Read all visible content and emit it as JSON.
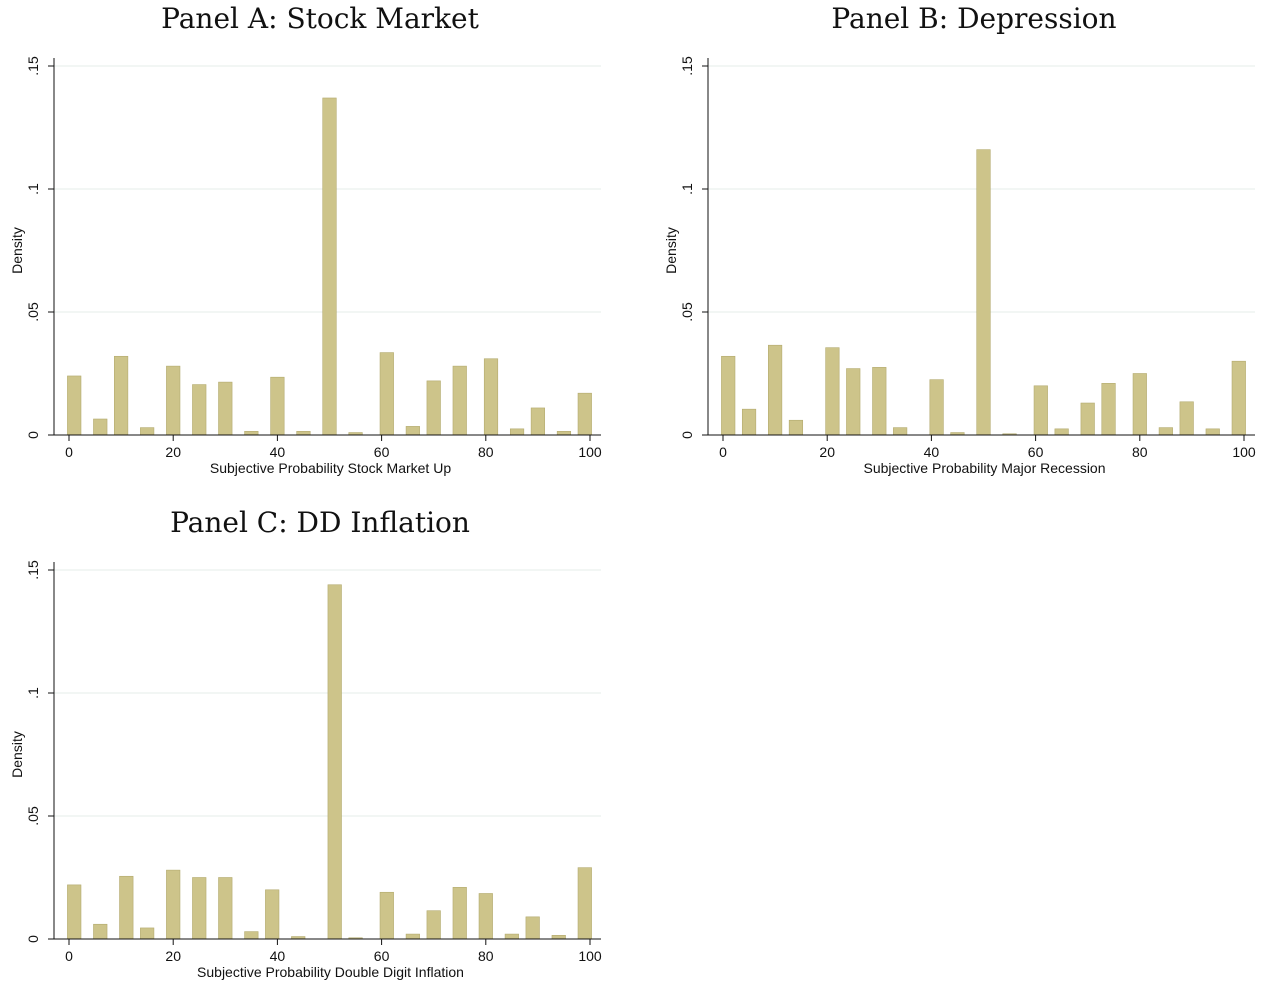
{
  "figure": {
    "bar_fill": "#cdc48a",
    "bar_stroke": "#b3aa6e",
    "grid_color": "#e6ece8"
  },
  "chart_data": [
    {
      "type": "bar",
      "title": "Panel A: Stock Market",
      "xlabel": "Subjective Probability Stock Market Up",
      "ylabel": "Density",
      "xlim": [
        0,
        100
      ],
      "ylim": [
        0,
        0.15
      ],
      "xticks": [
        0,
        20,
        40,
        60,
        80,
        100
      ],
      "yticks": [
        0,
        0.05,
        0.1,
        0.15
      ],
      "ytick_labels": [
        "0",
        ".05",
        ".1",
        ".15"
      ],
      "grid": true,
      "bin_width": 5,
      "bar_width": 2.6,
      "x": [
        1,
        6,
        10,
        15,
        20,
        25,
        30,
        35,
        40,
        45,
        50,
        55,
        61,
        66,
        70,
        75,
        81,
        86,
        90,
        95,
        99
      ],
      "values": [
        0.024,
        0.0065,
        0.032,
        0.003,
        0.028,
        0.0205,
        0.0215,
        0.0015,
        0.0235,
        0.0015,
        0.137,
        0.001,
        0.0335,
        0.0035,
        0.022,
        0.028,
        0.031,
        0.0025,
        0.011,
        0.0015,
        0.017
      ]
    },
    {
      "type": "bar",
      "title": "Panel B: Depression",
      "xlabel": "Subjective Probability Major Recession",
      "ylabel": "Density",
      "xlim": [
        0,
        100
      ],
      "ylim": [
        0,
        0.15
      ],
      "xticks": [
        0,
        20,
        40,
        60,
        80,
        100
      ],
      "yticks": [
        0,
        0.05,
        0.1,
        0.15
      ],
      "ytick_labels": [
        "0",
        ".05",
        ".1",
        ".15"
      ],
      "grid": true,
      "bin_width": 5,
      "bar_width": 2.6,
      "x": [
        1,
        5,
        10,
        14,
        21,
        25,
        30,
        34,
        41,
        45,
        50,
        55,
        61,
        65,
        70,
        74,
        80,
        85,
        89,
        94,
        99
      ],
      "values": [
        0.032,
        0.0105,
        0.0365,
        0.006,
        0.0355,
        0.027,
        0.0275,
        0.003,
        0.0225,
        0.001,
        0.116,
        0.0005,
        0.02,
        0.0025,
        0.013,
        0.021,
        0.025,
        0.003,
        0.0135,
        0.0025,
        0.03
      ]
    },
    {
      "type": "bar",
      "title": "Panel C: DD Inflation",
      "xlabel": "Subjective Probability Double Digit Inflation",
      "ylabel": "Density",
      "xlim": [
        0,
        100
      ],
      "ylim": [
        0,
        0.15
      ],
      "xticks": [
        0,
        20,
        40,
        60,
        80,
        100
      ],
      "yticks": [
        0,
        0.05,
        0.1,
        0.15
      ],
      "ytick_labels": [
        "0",
        ".05",
        ".1",
        ".15"
      ],
      "grid": true,
      "bin_width": 5,
      "bar_width": 2.6,
      "x": [
        1,
        6,
        11,
        15,
        20,
        25,
        30,
        35,
        39,
        44,
        51,
        55,
        61,
        66,
        70,
        75,
        80,
        85,
        89,
        94,
        99
      ],
      "values": [
        0.022,
        0.006,
        0.0255,
        0.0045,
        0.028,
        0.025,
        0.025,
        0.003,
        0.02,
        0.001,
        0.144,
        0.0005,
        0.019,
        0.002,
        0.0115,
        0.021,
        0.0185,
        0.002,
        0.009,
        0.0015,
        0.029
      ]
    }
  ]
}
